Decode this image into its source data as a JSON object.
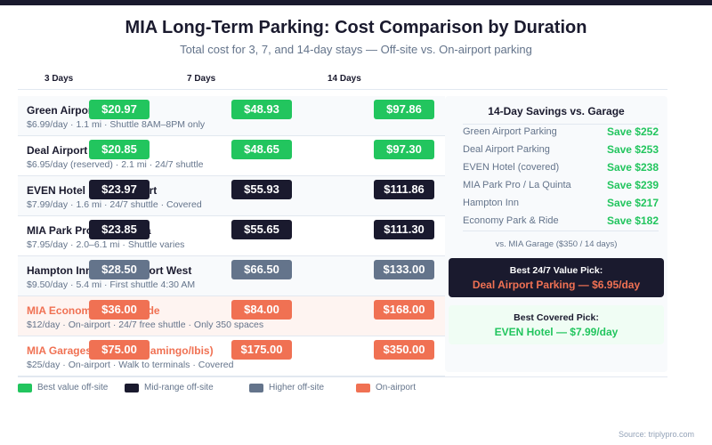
{
  "header": {
    "title": "MIA Long-Term Parking: Cost Comparison by Duration",
    "subtitle": "Total cost for 3, 7, and 14-day stays — Off-site vs. On-airport parking"
  },
  "colors": {
    "best_value": "#22c55e",
    "mid_range": "#1a1a2e",
    "higher": "#64748b",
    "on_airport": "#f07153"
  },
  "chart_data": {
    "type": "table",
    "title": "MIA Long-Term Parking: Cost Comparison by Duration",
    "subtitle": "Total cost for 3, 7, and 14-day stays — Off-site vs. On-airport parking",
    "columns": [
      "3 Days",
      "7 Days",
      "14 Days"
    ],
    "rows": [
      {
        "name": "Green Airport Parking",
        "detail": "$6.99/day · 1.1 mi · Shuttle 8AM–8PM only",
        "category": "best_value",
        "values": [
          "$20.97",
          "$48.93",
          "$97.86"
        ]
      },
      {
        "name": "Deal Airport Parking",
        "detail": "$6.95/day (reserved) · 2.1 mi · 24/7 shuttle",
        "category": "best_value",
        "values": [
          "$20.85",
          "$48.65",
          "$97.30"
        ]
      },
      {
        "name": "EVEN Hotel Miami Airport",
        "detail": "$7.99/day · 1.6 mi · 24/7 shuttle · Covered",
        "category": "mid_range",
        "values": [
          "$23.97",
          "$55.93",
          "$111.86"
        ]
      },
      {
        "name": "MIA Park Pro / La Quinta",
        "detail": "$7.95/day · 2.0–6.1 mi · Shuttle varies",
        "category": "mid_range",
        "values": [
          "$23.85",
          "$55.65",
          "$111.30"
        ]
      },
      {
        "name": "Hampton Inn Miami Airport West",
        "detail": "$9.50/day · 5.4 mi · First shuttle 4:30 AM",
        "category": "higher",
        "values": [
          "$28.50",
          "$66.50",
          "$133.00"
        ]
      },
      {
        "name": "MIA Economy Park & Ride",
        "detail": "$12/day · On-airport · 24/7 free shuttle · Only 350 spaces",
        "category": "on_airport",
        "values": [
          "$36.00",
          "$84.00",
          "$168.00"
        ]
      },
      {
        "name": "MIA Garages (Dolphin/Flamingo/Ibis)",
        "detail": "$25/day · On-airport · Walk to terminals · Covered",
        "category": "on_airport",
        "values": [
          "$75.00",
          "$175.00",
          "$350.00"
        ]
      }
    ],
    "legend": [
      {
        "label": "Best value off-site",
        "category": "best_value"
      },
      {
        "label": "Mid-range off-site",
        "category": "mid_range"
      },
      {
        "label": "Higher off-site",
        "category": "higher"
      },
      {
        "label": "On-airport",
        "category": "on_airport"
      }
    ],
    "legend_placement": "bottom-left"
  },
  "savings_panel": {
    "title": "14-Day Savings vs. Garage",
    "items": [
      {
        "name": "Green Airport Parking",
        "value": "Save $252"
      },
      {
        "name": "Deal Airport Parking",
        "value": "Save $253"
      },
      {
        "name": "EVEN Hotel (covered)",
        "value": "Save $238"
      },
      {
        "name": "MIA Park Pro / La Quinta",
        "value": "Save $239"
      },
      {
        "name": "Hampton Inn",
        "value": "Save $217"
      },
      {
        "name": "Economy Park & Ride",
        "value": "Save $182"
      }
    ],
    "note": "vs. MIA Garage ($350 / 14 days)"
  },
  "picks": {
    "value_label": "Best 24/7 Value Pick:",
    "value_text": "Deal Airport Parking — $6.95/day",
    "covered_label": "Best Covered Pick:",
    "covered_text": "EVEN Hotel — $7.99/day"
  },
  "footer": {
    "source": "Source: triplypro.com"
  }
}
